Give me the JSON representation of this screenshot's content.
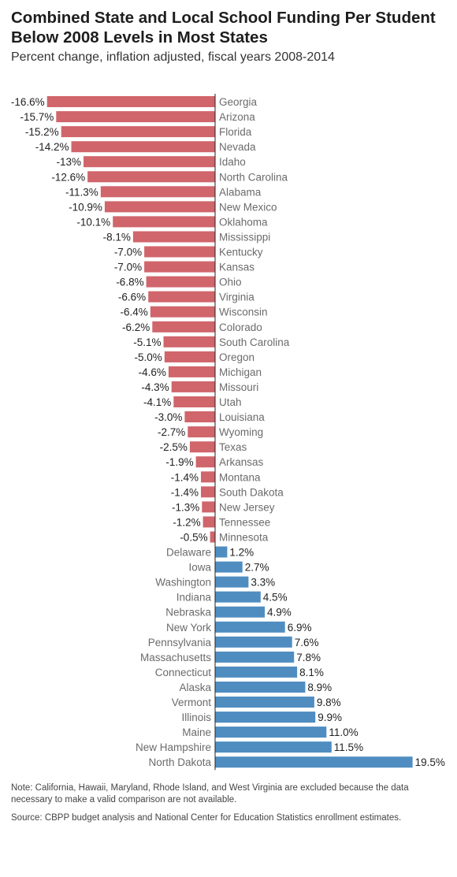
{
  "chart_data": {
    "type": "bar",
    "orientation": "horizontal",
    "title": "Combined State and Local School Funding Per Student Below 2008 Levels in Most States",
    "subtitle": "Percent change, inflation adjusted, fiscal years 2008-2014",
    "categories": [
      "Georgia",
      "Arizona",
      "Florida",
      "Nevada",
      "Idaho",
      "North Carolina",
      "Alabama",
      "New Mexico",
      "Oklahoma",
      "Mississippi",
      "Kentucky",
      "Kansas",
      "Ohio",
      "Virginia",
      "Wisconsin",
      "Colorado",
      "South Carolina",
      "Oregon",
      "Michigan",
      "Missouri",
      "Utah",
      "Louisiana",
      "Wyoming",
      "Texas",
      "Arkansas",
      "Montana",
      "South Dakota",
      "New Jersey",
      "Tennessee",
      "Minnesota",
      "Delaware",
      "Iowa",
      "Washington",
      "Indiana",
      "Nebraska",
      "New York",
      "Pennsylvania",
      "Massachusetts",
      "Connecticut",
      "Alaska",
      "Vermont",
      "Illinois",
      "Maine",
      "New Hampshire",
      "North Dakota"
    ],
    "values": [
      -16.6,
      -15.7,
      -15.2,
      -14.2,
      -13,
      -12.6,
      -11.3,
      -10.9,
      -10.1,
      -8.1,
      -7.0,
      -7.0,
      -6.8,
      -6.6,
      -6.4,
      -6.2,
      -5.1,
      -5.0,
      -4.6,
      -4.3,
      -4.1,
      -3.0,
      -2.7,
      -2.5,
      -1.9,
      -1.4,
      -1.4,
      -1.3,
      -1.2,
      -0.5,
      1.2,
      2.7,
      3.3,
      4.5,
      4.9,
      6.9,
      7.6,
      7.8,
      8.1,
      8.9,
      9.8,
      9.9,
      11.0,
      11.5,
      19.5
    ],
    "value_labels": [
      "-16.6%",
      "-15.7%",
      "-15.2%",
      "-14.2%",
      "-13%",
      "-12.6%",
      "-11.3%",
      "-10.9%",
      "-10.1%",
      "-8.1%",
      "-7.0%",
      "-7.0%",
      "-6.8%",
      "-6.6%",
      "-6.4%",
      "-6.2%",
      "-5.1%",
      "-5.0%",
      "-4.6%",
      "-4.3%",
      "-4.1%",
      "-3.0%",
      "-2.7%",
      "-2.5%",
      "-1.9%",
      "-1.4%",
      "-1.4%",
      "-1.3%",
      "-1.2%",
      "-0.5%",
      "1.2%",
      "2.7%",
      "3.3%",
      "4.5%",
      "4.9%",
      "6.9%",
      "7.6%",
      "7.8%",
      "8.1%",
      "8.9%",
      "9.8%",
      "9.9%",
      "11.0%",
      "11.5%",
      "19.5%"
    ],
    "xlim": [
      -16.6,
      19.5
    ],
    "grid": false,
    "colors": {
      "negative": "#d0656b",
      "positive": "#4f8dc1",
      "axis": "#222222"
    }
  },
  "notes": {
    "note": "Note: California, Hawaii, Maryland, Rhode Island, and West Virginia are excluded because the data necessary to make a valid comparison are not available.",
    "source": "Source: CBPP budget analysis and National Center for Education Statistics enrollment estimates."
  }
}
